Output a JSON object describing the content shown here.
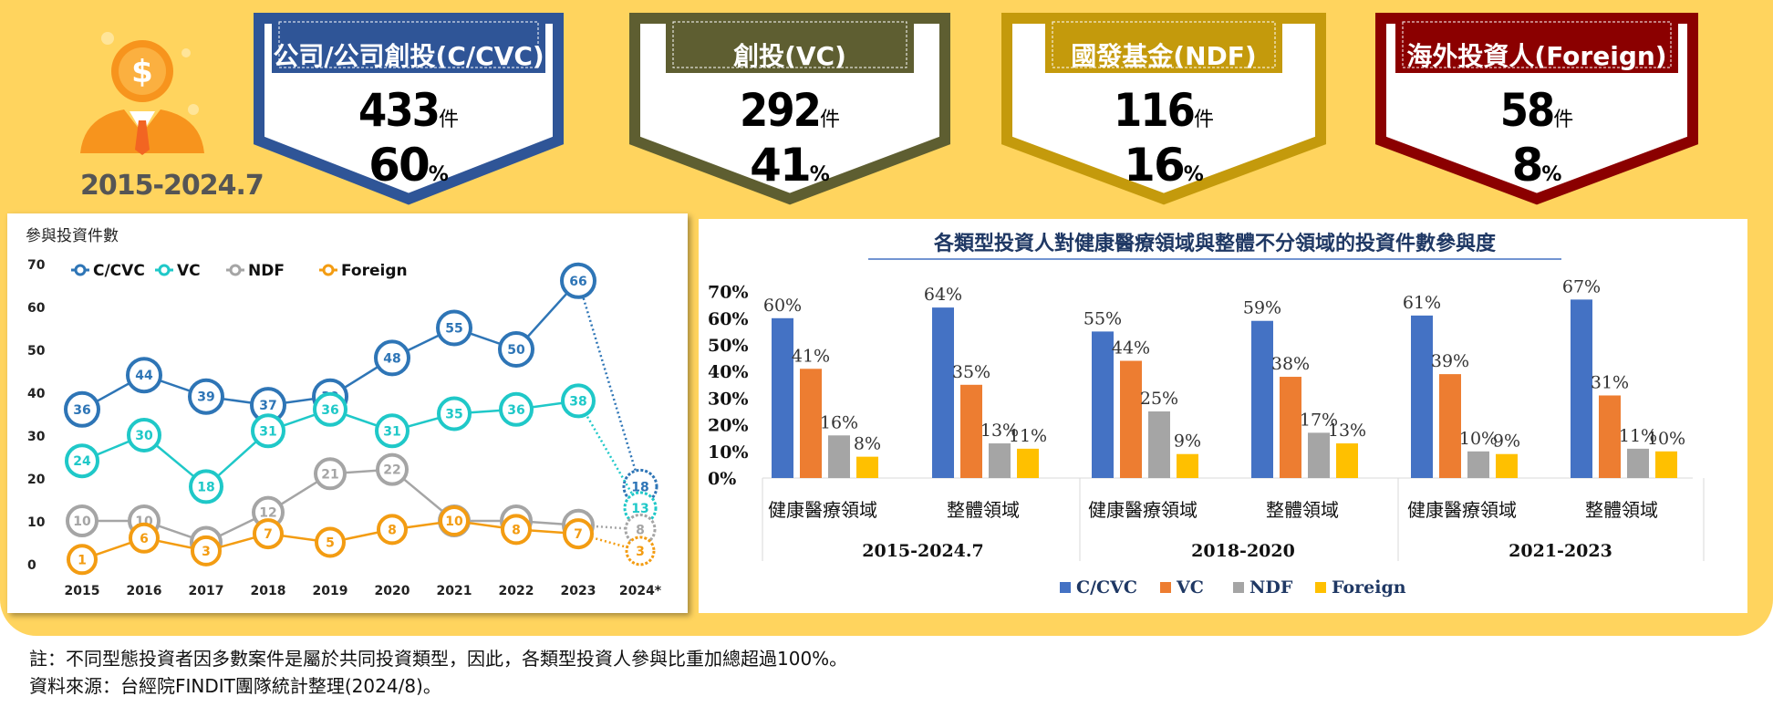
{
  "period_label": "2015-2024.7",
  "badges": [
    {
      "title": "公司/公司創投(C/CVC)",
      "count": "433",
      "unit": "件",
      "pct": "60",
      "pct_unit": "%",
      "color": "#2F5597"
    },
    {
      "title": "創投(VC)",
      "count": "292",
      "unit": "件",
      "pct": "41",
      "pct_unit": "%",
      "color": "#5E5E31"
    },
    {
      "title": "國發基金(NDF)",
      "count": "116",
      "unit": "件",
      "pct": "16",
      "pct_unit": "%",
      "color": "#C49A0C"
    },
    {
      "title": "海外投資人(Foreign)",
      "count": "58",
      "unit": "件",
      "pct": "8",
      "pct_unit": "%",
      "color": "#8B0000"
    }
  ],
  "chart_data": [
    {
      "type": "line",
      "ylabel": "參與投資件數",
      "ylim": [
        0,
        70
      ],
      "yticks": [
        "0",
        "10",
        "20",
        "30",
        "40",
        "50",
        "60",
        "70"
      ],
      "categories": [
        "2015",
        "2016",
        "2017",
        "2018",
        "2019",
        "2020",
        "2021",
        "2022",
        "2023",
        "2024*"
      ],
      "legend_position": "top-left",
      "series": [
        {
          "name": "C/CVC",
          "color": "#2E75B6",
          "values": [
            36,
            44,
            39,
            37,
            39,
            48,
            55,
            50,
            66,
            18
          ]
        },
        {
          "name": "VC",
          "color": "#1FC8C8",
          "values": [
            24,
            30,
            18,
            31,
            36,
            31,
            35,
            36,
            38,
            13
          ]
        },
        {
          "name": "NDF",
          "color": "#A5A5A5",
          "values": [
            10,
            10,
            5,
            12,
            21,
            22,
            10,
            10,
            9,
            8
          ]
        },
        {
          "name": "Foreign",
          "color": "#F39C12",
          "values": [
            1,
            6,
            3,
            7,
            5,
            8,
            10,
            8,
            7,
            3
          ]
        }
      ]
    },
    {
      "type": "bar",
      "title": "各類型投資人對健康醫療領域與整體不分領域的投資件數參與度",
      "ylim": [
        0,
        70
      ],
      "yticks": [
        "0%",
        "10%",
        "20%",
        "30%",
        "40%",
        "50%",
        "60%",
        "70%"
      ],
      "categories": [
        "健康醫療領域",
        "整體領域",
        "健康醫療領域",
        "整體領域",
        "健康醫療領域",
        "整體領域"
      ],
      "groups": [
        "2015-2024.7",
        "2018-2020",
        "2021-2023"
      ],
      "legend_position": "bottom",
      "series": [
        {
          "name": "C/CVC",
          "color": "#4472C4",
          "values": [
            60,
            64,
            55,
            59,
            61,
            67
          ]
        },
        {
          "name": "VC",
          "color": "#ED7D31",
          "values": [
            41,
            35,
            44,
            38,
            39,
            31
          ]
        },
        {
          "name": "NDF",
          "color": "#A5A5A5",
          "values": [
            16,
            13,
            25,
            17,
            10,
            11
          ]
        },
        {
          "name": "Foreign",
          "color": "#FFC000",
          "values": [
            8,
            11,
            9,
            13,
            9,
            10
          ]
        }
      ]
    }
  ],
  "notes": {
    "line1": "註：不同型態投資者因多數案件是屬於共同投資類型，因此，各類型投資人參與比重加總超過100%。",
    "line2": "資料來源：台經院FINDIT團隊統計整理(2024/8)。"
  }
}
